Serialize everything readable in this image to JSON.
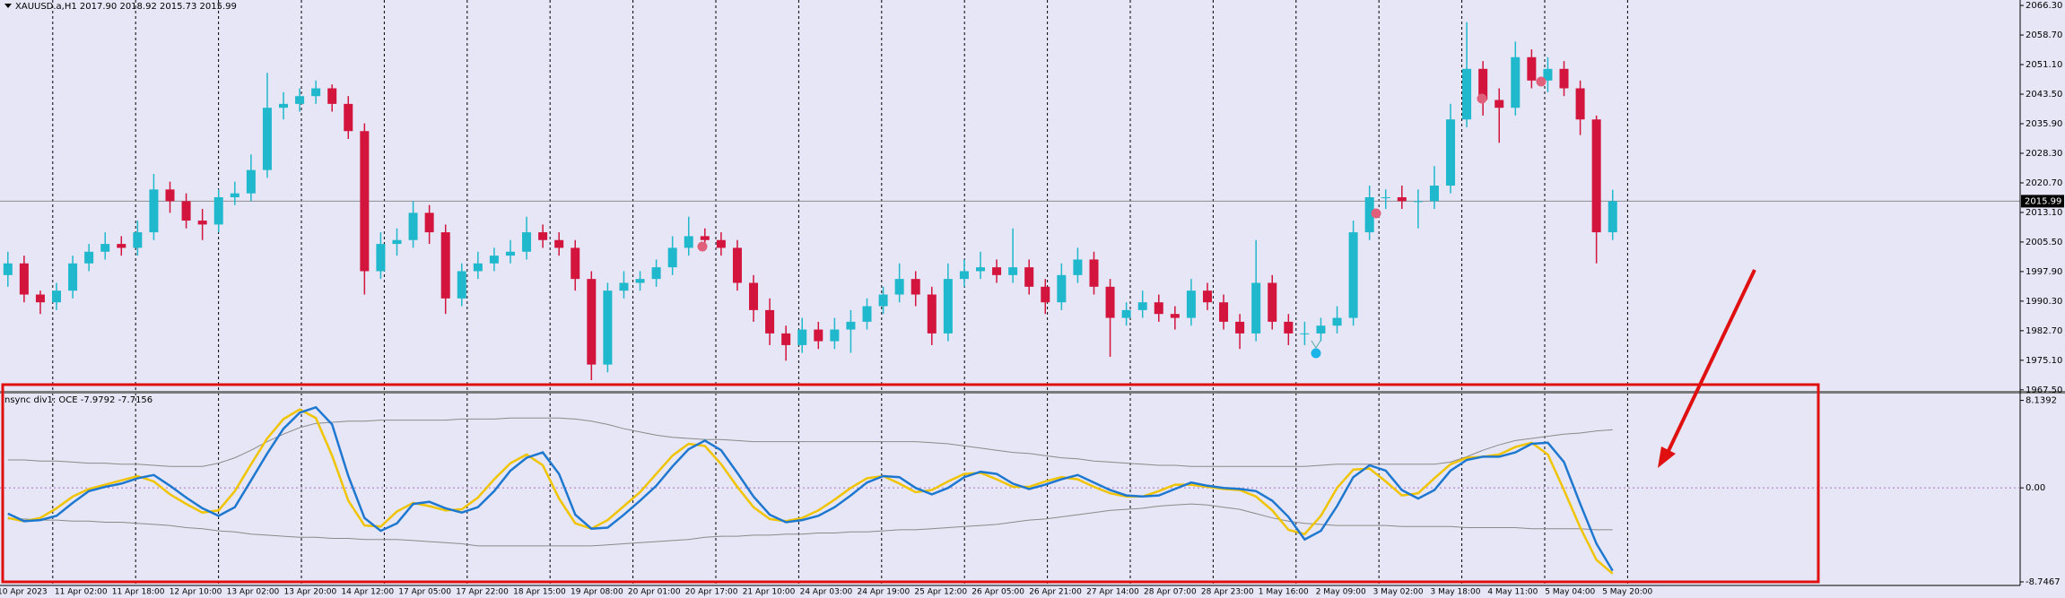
{
  "chart_data": [
    {
      "type": "candlestick",
      "title": "XAUUSD.a,H1  2017.90 2018.92 2015.73 2015.99",
      "open": [
        1997,
        2000,
        1992,
        1990,
        1993,
        2000,
        2003,
        2005,
        2004,
        2008,
        2019,
        2016,
        2011,
        2010,
        2017,
        2018,
        2024,
        2040,
        2041,
        2043,
        2045,
        2041,
        2034,
        1998,
        2005,
        2006,
        2013,
        2008,
        1991,
        1998,
        2000,
        2002,
        2003,
        2008,
        2006,
        2004,
        1996,
        1974,
        1993,
        1995,
        1996,
        1999,
        2004,
        2007,
        2006,
        2004,
        1995,
        1988,
        1982,
        1979,
        1983,
        1980,
        1983,
        1985,
        1989,
        1992,
        1996,
        1992,
        1982,
        1996,
        1998,
        1999,
        1997,
        1999,
        1994,
        1990,
        1997,
        2001,
        1994,
        1986,
        1988,
        1990,
        1987,
        1986,
        1993,
        1990,
        1985,
        1982,
        1995,
        1985,
        1982,
        1982,
        1984,
        1986,
        2008,
        2017,
        2017,
        2016,
        2016,
        2020,
        2037,
        2050,
        2042,
        2040,
        2053,
        2047,
        2050,
        2045,
        2037,
        2008
      ],
      "high": [
        2003,
        2002,
        1993,
        1995,
        2002,
        2005,
        2008,
        2007,
        2011,
        2023,
        2021,
        2018,
        2014,
        2019,
        2021,
        2028,
        2049,
        2044,
        2045,
        2047,
        2046,
        2043,
        2036,
        2008,
        2009,
        2016,
        2015,
        2010,
        2000,
        2003,
        2004,
        2006,
        2012,
        2010,
        2008,
        2006,
        1998,
        1995,
        1998,
        1998,
        2001,
        2007,
        2012,
        2009,
        2008,
        2006,
        1997,
        1991,
        1984,
        1986,
        1985,
        1986,
        1988,
        1991,
        1994,
        2000,
        1998,
        1994,
        2000,
        2001,
        2003,
        2001,
        2009,
        2001,
        1996,
        2000,
        2004,
        2003,
        1996,
        1990,
        1993,
        1992,
        1989,
        1996,
        1995,
        1992,
        1987,
        2006,
        1997,
        1987,
        1985,
        1986,
        1989,
        2011,
        2020,
        2019,
        2020,
        2019,
        2025,
        2041,
        2062,
        2052,
        2045,
        2057,
        2055,
        2053,
        2052,
        2047,
        2038,
        2018.92
      ],
      "low": [
        1994,
        1990,
        1987,
        1988,
        1991,
        1998,
        2001,
        2002,
        2002,
        2006,
        2013,
        2009,
        2006,
        2008,
        2015,
        2016,
        2022,
        2037,
        2039,
        2041,
        2039,
        2032,
        1992,
        1996,
        2002,
        2004,
        2005,
        1987,
        1989,
        1996,
        1998,
        2000,
        2001,
        2004,
        2002,
        1993,
        1970,
        1972,
        1991,
        1993,
        1994,
        1997,
        2002,
        2004,
        2002,
        1993,
        1985,
        1979,
        1975,
        1977,
        1978,
        1978,
        1977,
        1983,
        1987,
        1990,
        1989,
        1979,
        1980,
        1994,
        1996,
        1995,
        1995,
        1992,
        1987,
        1988,
        1995,
        1992,
        1976,
        1984,
        1986,
        1985,
        1983,
        1984,
        1988,
        1983,
        1978,
        1980,
        1983,
        1979,
        1979,
        1980,
        1982,
        1984,
        2006,
        2014,
        2014,
        2009,
        2014,
        2018,
        2035,
        2038,
        2031,
        2038,
        2045,
        2044,
        2043,
        2033,
        2000,
        2006
      ],
      "close": [
        2000,
        1992,
        1990,
        1993,
        2000,
        2003,
        2005,
        2004,
        2008,
        2019,
        2016,
        2011,
        2010,
        2017,
        2018,
        2024,
        2040,
        2041,
        2043,
        2045,
        2041,
        2034,
        1998,
        2005,
        2006,
        2013,
        2008,
        1991,
        1998,
        2000,
        2002,
        2003,
        2008,
        2006,
        2004,
        1996,
        1974,
        1993,
        1995,
        1996,
        1999,
        2004,
        2007,
        2006,
        2004,
        1995,
        1988,
        1982,
        1979,
        1983,
        1980,
        1983,
        1985,
        1989,
        1992,
        1996,
        1992,
        1982,
        1996,
        1998,
        1999,
        1997,
        1999,
        1994,
        1990,
        1997,
        2001,
        1994,
        1986,
        1988,
        1990,
        1987,
        1986,
        1993,
        1990,
        1985,
        1982,
        1995,
        1985,
        1982,
        1982,
        1984,
        1986,
        2008,
        2017,
        2017,
        2016,
        2016,
        2020,
        2037,
        2050,
        2042,
        2040,
        2053,
        2047,
        2050,
        2045,
        2037,
        2008,
        2015.99
      ],
      "up_color": "#1fb8cc",
      "down_color": "#d3143c",
      "last_price": 2015.99,
      "ylim": [
        1967.0,
        2067.7
      ],
      "yticks": [
        {
          "value": 2066.3,
          "label": "2066.30"
        },
        {
          "value": 2058.7,
          "label": "2058.70"
        },
        {
          "value": 2051.1,
          "label": "2051.10"
        },
        {
          "value": 2043.5,
          "label": "2043.50"
        },
        {
          "value": 2035.9,
          "label": "2035.90"
        },
        {
          "value": 2028.3,
          "label": "2028.30"
        },
        {
          "value": 2020.7,
          "label": "2020.70"
        },
        {
          "value": 2013.1,
          "label": "2013.10"
        },
        {
          "value": 2005.5,
          "label": "2005.50"
        },
        {
          "value": 1997.9,
          "label": "1997.90"
        },
        {
          "value": 1990.3,
          "label": "1990.30"
        },
        {
          "value": 1982.7,
          "label": "1982.70"
        },
        {
          "value": 1975.1,
          "label": "1975.10"
        },
        {
          "value": 1967.5,
          "label": "1967.50"
        }
      ],
      "x_labels": [
        "10 Apr 2023",
        "11 Apr 02:00",
        "11 Apr 18:00",
        "12 Apr 10:00",
        "13 Apr 02:00",
        "13 Apr 20:00",
        "14 Apr 12:00",
        "17 Apr 05:00",
        "17 Apr 22:00",
        "18 Apr 15:00",
        "19 Apr 08:00",
        "20 Apr 01:00",
        "20 Apr 17:00",
        "21 Apr 10:00",
        "24 Apr 03:00",
        "24 Apr 19:00",
        "25 Apr 12:00",
        "26 Apr 05:00",
        "26 Apr 21:00",
        "27 Apr 14:00",
        "28 Apr 07:00",
        "28 Apr 23:00",
        "1 May 16:00",
        "2 May 09:00",
        "3 May 02:00",
        "3 May 18:00",
        "4 May 11:00",
        "5 May 04:00",
        "5 May 20:00"
      ]
    },
    {
      "type": "line",
      "title": "nsync div1: OCE -7.9792 -7.7156",
      "series": [
        {
          "color": "#8a8a8a",
          "values": [
            2.6,
            2.6,
            2.5,
            2.5,
            2.4,
            2.3,
            2.3,
            2.2,
            2.2,
            2.1,
            2.0,
            2.0,
            2.0,
            2.3,
            2.8,
            3.5,
            4.3,
            5.0,
            5.6,
            6.0,
            6.1,
            6.2,
            6.2,
            6.3,
            6.3,
            6.3,
            6.3,
            6.3,
            6.4,
            6.4,
            6.4,
            6.5,
            6.5,
            6.5,
            6.5,
            6.4,
            6.2,
            5.9,
            5.5,
            5.2,
            4.9,
            4.7,
            4.6,
            4.5,
            4.5,
            4.4,
            4.3,
            4.3,
            4.3,
            4.3,
            4.3,
            4.3,
            4.3,
            4.3,
            4.3,
            4.3,
            4.3,
            4.2,
            4.1,
            3.9,
            3.7,
            3.5,
            3.3,
            3.2,
            3.0,
            2.8,
            2.7,
            2.5,
            2.4,
            2.3,
            2.2,
            2.1,
            2.1,
            2.0,
            2.0,
            2.0,
            2.0,
            2.0,
            2.0,
            2.0,
            2.0,
            2.1,
            2.2,
            2.2,
            2.2,
            2.2,
            2.2,
            2.2,
            2.2,
            2.4,
            2.9,
            3.5,
            4.0,
            4.4,
            4.6,
            4.8,
            5.0,
            5.1,
            5.3,
            5.4
          ]
        },
        {
          "color": "#8a8a8a",
          "values": [
            -2.9,
            -2.9,
            -3.0,
            -3.0,
            -3.1,
            -3.1,
            -3.2,
            -3.2,
            -3.3,
            -3.4,
            -3.5,
            -3.7,
            -3.8,
            -4.0,
            -4.1,
            -4.3,
            -4.4,
            -4.5,
            -4.6,
            -4.6,
            -4.7,
            -4.7,
            -4.8,
            -4.8,
            -4.8,
            -4.9,
            -5.0,
            -5.1,
            -5.2,
            -5.4,
            -5.4,
            -5.4,
            -5.4,
            -5.4,
            -5.4,
            -5.4,
            -5.4,
            -5.3,
            -5.2,
            -5.1,
            -5.0,
            -4.9,
            -4.8,
            -4.6,
            -4.5,
            -4.5,
            -4.4,
            -4.4,
            -4.3,
            -4.3,
            -4.2,
            -4.2,
            -4.1,
            -4.1,
            -4.0,
            -3.9,
            -3.9,
            -3.8,
            -3.7,
            -3.6,
            -3.5,
            -3.4,
            -3.2,
            -3.0,
            -2.9,
            -2.7,
            -2.5,
            -2.3,
            -2.1,
            -2.0,
            -1.9,
            -1.7,
            -1.6,
            -1.5,
            -1.6,
            -1.8,
            -2.0,
            -2.4,
            -2.8,
            -3.1,
            -3.3,
            -3.4,
            -3.5,
            -3.5,
            -3.5,
            -3.5,
            -3.6,
            -3.6,
            -3.6,
            -3.6,
            -3.7,
            -3.7,
            -3.7,
            -3.7,
            -3.8,
            -3.8,
            -3.8,
            -3.8,
            -3.9,
            -3.9
          ]
        },
        {
          "color": "#f0c400",
          "values": [
            -2.8,
            -3.1,
            -2.8,
            -1.9,
            -0.8,
            -0.1,
            0.3,
            0.7,
            1.1,
            0.6,
            -0.6,
            -1.5,
            -2.3,
            -2.1,
            -0.3,
            2.2,
            4.6,
            6.4,
            7.3,
            6.5,
            3.0,
            -1.2,
            -3.5,
            -3.6,
            -2.2,
            -1.4,
            -1.7,
            -2.1,
            -2.0,
            -0.9,
            0.8,
            2.3,
            3.1,
            2.1,
            -1.0,
            -3.3,
            -3.8,
            -3.0,
            -1.7,
            -0.4,
            1.3,
            3.0,
            4.1,
            3.9,
            2.2,
            0.1,
            -1.8,
            -2.9,
            -3.1,
            -2.8,
            -2.1,
            -1.1,
            0.0,
            0.9,
            1.1,
            0.4,
            -0.4,
            -0.2,
            0.6,
            1.3,
            1.4,
            0.8,
            0.1,
            0.1,
            0.6,
            1.0,
            0.8,
            0.1,
            -0.5,
            -0.8,
            -0.8,
            -0.3,
            0.3,
            0.3,
            0.1,
            -0.1,
            -0.2,
            -0.8,
            -2.1,
            -3.9,
            -4.3,
            -2.6,
            0.0,
            1.7,
            1.8,
            0.6,
            -0.7,
            -0.5,
            0.9,
            2.2,
            2.8,
            2.9,
            3.1,
            3.8,
            4.2,
            3.1,
            -0.2,
            -3.7,
            -6.7,
            -7.9792
          ]
        },
        {
          "color": "#1f78d0",
          "values": [
            -2.4,
            -3.1,
            -3.0,
            -2.6,
            -1.4,
            -0.3,
            0.1,
            0.4,
            0.9,
            1.2,
            0.2,
            -0.9,
            -1.9,
            -2.6,
            -1.8,
            0.7,
            3.2,
            5.5,
            7.0,
            7.5,
            5.9,
            1.1,
            -2.8,
            -4.0,
            -3.3,
            -1.5,
            -1.3,
            -1.9,
            -2.3,
            -1.8,
            -0.3,
            1.6,
            2.8,
            3.3,
            1.3,
            -2.5,
            -3.8,
            -3.7,
            -2.5,
            -1.2,
            0.2,
            2.0,
            3.6,
            4.4,
            3.5,
            1.4,
            -0.8,
            -2.5,
            -3.2,
            -3.0,
            -2.6,
            -1.8,
            -0.7,
            0.5,
            1.1,
            1.0,
            0.0,
            -0.6,
            0.0,
            1.0,
            1.5,
            1.3,
            0.4,
            -0.1,
            0.3,
            0.8,
            1.2,
            0.5,
            -0.2,
            -0.7,
            -0.8,
            -0.7,
            -0.1,
            0.5,
            0.2,
            0.0,
            -0.1,
            -0.3,
            -1.2,
            -2.7,
            -4.8,
            -4.0,
            -1.7,
            1.0,
            2.1,
            1.6,
            -0.2,
            -1.0,
            -0.2,
            1.6,
            2.6,
            2.9,
            2.9,
            3.3,
            4.1,
            4.2,
            2.4,
            -1.5,
            -5.2,
            -7.7156
          ]
        }
      ],
      "ylim": [
        -9.08,
        8.69
      ],
      "yticks": [
        8.1392,
        {
          "value": 0,
          "label": "0.00"
        },
        -8.7467
      ]
    }
  ]
}
